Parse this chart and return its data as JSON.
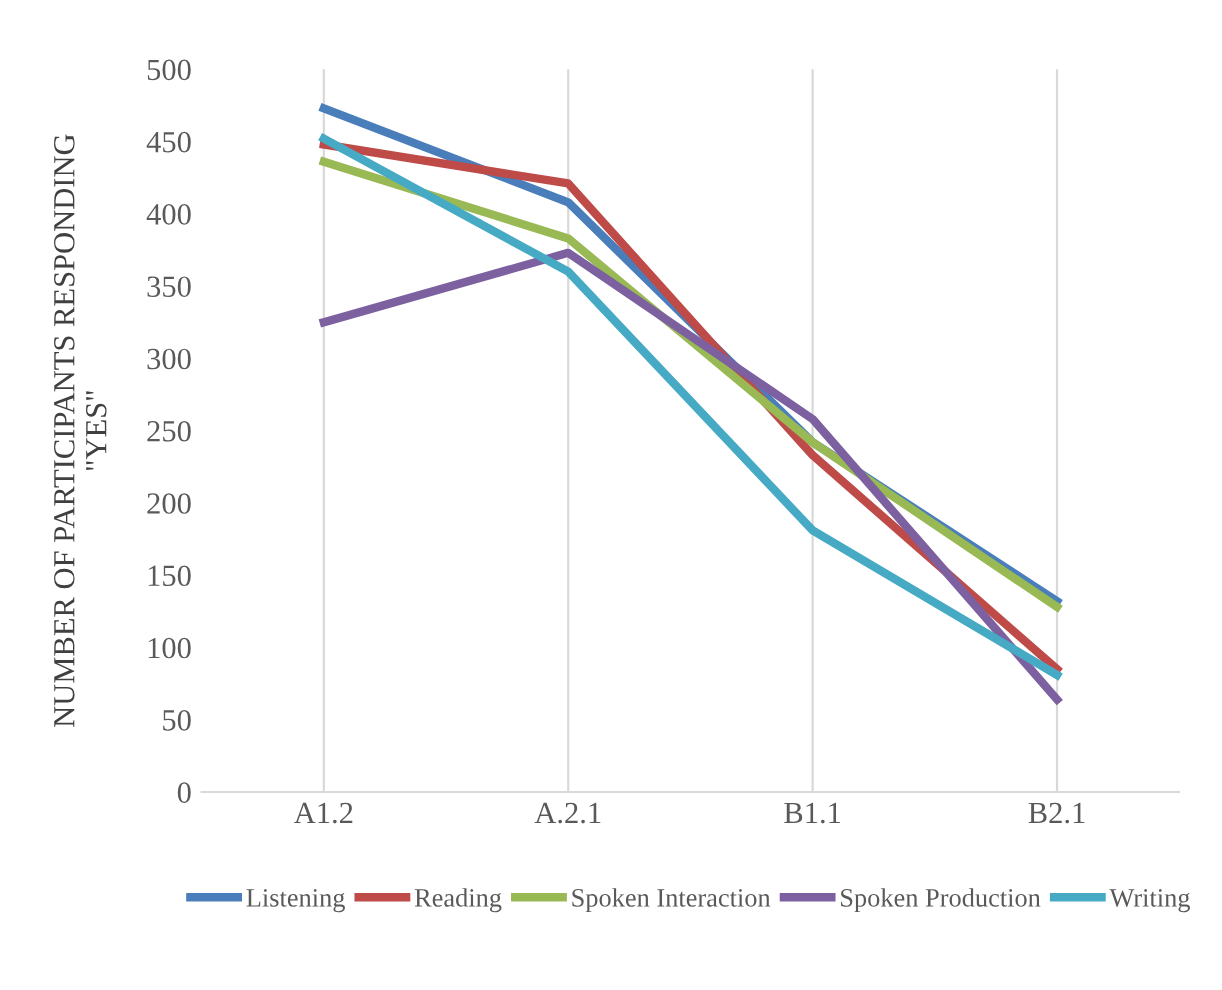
{
  "chart_data": {
    "type": "line",
    "ylabel": "NUMBER OF PARTICIPANTS RESPONDING\n\"YES\"",
    "categories": [
      "A1.2",
      "A.2.1",
      "B1.1",
      "B2.1"
    ],
    "series": [
      {
        "name": "Listening",
        "color": "#4a7ebb",
        "values": [
          473,
          408,
          242,
          132
        ]
      },
      {
        "name": "Reading",
        "color": "#be4b48",
        "values": [
          448,
          421,
          233,
          85
        ]
      },
      {
        "name": "Spoken Interaction",
        "color": "#98b954",
        "values": [
          436,
          383,
          242,
          128
        ]
      },
      {
        "name": "Spoken Production",
        "color": "#7d60a0",
        "values": [
          325,
          373,
          258,
          64
        ]
      },
      {
        "name": "Writing",
        "color": "#46aac5",
        "values": [
          452,
          360,
          181,
          81
        ]
      }
    ],
    "ylim": [
      0,
      500
    ],
    "yticks": [
      0,
      50,
      100,
      150,
      200,
      250,
      300,
      350,
      400,
      450,
      500
    ],
    "grid": "x",
    "legend": "bottom",
    "marker": "none",
    "line_style": "solid"
  }
}
